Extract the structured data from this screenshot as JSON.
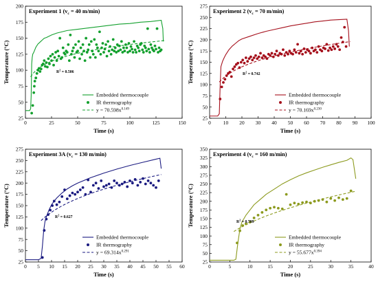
{
  "chart_data": [
    {
      "type": "scatter",
      "title_prefix": "Experiment 1 (v",
      "title_sub": "c",
      "title_suffix": " = 40 m/min)",
      "xlabel": "Time (s)",
      "ylabel": "Temperature (°C)",
      "xlim": [
        0,
        150
      ],
      "ylim": [
        25,
        200
      ],
      "xticks": [
        0,
        25,
        50,
        75,
        100,
        125,
        150
      ],
      "yticks": [
        25,
        50,
        75,
        100,
        125,
        150,
        175,
        200
      ],
      "color": "#13a02e",
      "r2_label": "R",
      "r2_sup": "2",
      "r2_value": " = 0.506",
      "grid": false,
      "legend_position": "bottom-right",
      "series": [
        {
          "name": "Embedded thermocouple",
          "kind": "line",
          "x": [
            0,
            4,
            5,
            5.5,
            6,
            6.5,
            7,
            8,
            9,
            10,
            12,
            14,
            16,
            18,
            20,
            25,
            30,
            40,
            50,
            60,
            70,
            80,
            90,
            100,
            110,
            120,
            130,
            131.5,
            132
          ],
          "y": [
            37,
            37,
            40,
            60,
            110,
            120,
            125,
            128,
            132,
            136,
            141,
            144,
            147,
            150,
            151,
            155,
            158,
            162,
            164,
            166,
            168,
            170,
            172,
            173,
            175,
            176,
            178,
            165,
            145
          ]
        },
        {
          "name": "IR thermography",
          "kind": "scatter",
          "x": [
            6,
            7,
            8,
            8.5,
            9,
            10,
            11,
            12,
            13,
            14,
            15,
            16,
            17,
            18,
            19,
            20,
            21,
            22,
            23,
            24,
            25,
            26,
            27,
            28,
            29,
            30,
            31,
            32,
            33,
            34,
            35,
            36,
            37,
            38,
            39,
            40,
            41,
            42,
            43,
            44,
            45,
            46,
            47,
            48,
            49,
            50,
            51,
            52,
            53,
            54,
            55,
            56,
            57,
            58,
            59,
            60,
            61,
            62,
            63,
            64,
            65,
            66,
            67,
            68,
            69,
            70,
            71,
            72,
            73,
            74,
            75,
            76,
            77,
            78,
            79,
            80,
            81,
            82,
            83,
            84,
            85,
            86,
            87,
            88,
            89,
            90,
            91,
            92,
            93,
            94,
            95,
            96,
            97,
            98,
            99,
            100,
            101,
            102,
            103,
            104,
            105,
            106,
            107,
            108,
            109,
            110,
            111,
            112,
            113,
            114,
            115,
            116,
            117,
            118,
            119,
            120,
            121,
            122,
            123,
            124,
            125,
            126,
            127,
            128,
            129,
            130
          ],
          "y": [
            33,
            45,
            65,
            75,
            83,
            88,
            95,
            100,
            103,
            98,
            102,
            108,
            110,
            115,
            106,
            112,
            105,
            118,
            110,
            122,
            115,
            125,
            108,
            120,
            128,
            115,
            130,
            122,
            150,
            118,
            120,
            135,
            127,
            125,
            130,
            128,
            140,
            115,
            155,
            125,
            130,
            135,
            120,
            140,
            128,
            130,
            145,
            118,
            135,
            125,
            140,
            130,
            115,
            150,
            128,
            132,
            140,
            120,
            145,
            130,
            125,
            148,
            120,
            140,
            135,
            130,
            160,
            125,
            135,
            142,
            128,
            133,
            140,
            122,
            145,
            130,
            137,
            125,
            132,
            148,
            130,
            135,
            128,
            140,
            130,
            138,
            132,
            145,
            128,
            135,
            130,
            140,
            135,
            128,
            142,
            130,
            137,
            133,
            128,
            145,
            132,
            128,
            138,
            135,
            130,
            140,
            142,
            132,
            128,
            138,
            135,
            130,
            165,
            133,
            128,
            140,
            135,
            132,
            130,
            138,
            133,
            165,
            128,
            135,
            130,
            132
          ]
        },
        {
          "name": "y = 70.598x",
          "sup": "0.149",
          "kind": "fit",
          "a": 70.598,
          "b": 0.149,
          "x_from": 5,
          "x_to": 133
        }
      ]
    },
    {
      "type": "scatter",
      "title_prefix": "Experiment 2 (v",
      "title_sub": "c",
      "title_suffix": " = 70 m/min)",
      "xlabel": "Time (s)",
      "ylabel": "Temperature (°C)",
      "xlim": [
        0,
        100
      ],
      "ylim": [
        25,
        275
      ],
      "xticks": [
        0,
        10,
        20,
        30,
        40,
        50,
        60,
        70,
        80,
        90,
        100
      ],
      "yticks": [
        25,
        50,
        75,
        100,
        125,
        150,
        175,
        200,
        225,
        250,
        275
      ],
      "color": "#a50f1b",
      "r2_label": "R",
      "r2_sup": "2",
      "r2_value": " = 0.742",
      "grid": false,
      "legend_position": "bottom-right",
      "series": [
        {
          "name": "Embedded thermocouple",
          "kind": "line",
          "x": [
            0,
            5,
            6,
            6.5,
            7,
            8,
            9,
            10,
            12,
            14,
            16,
            18,
            20,
            25,
            30,
            35,
            40,
            45,
            50,
            55,
            60,
            65,
            70,
            75,
            80,
            85,
            86,
            86.5
          ],
          "y": [
            30,
            30,
            35,
            95,
            140,
            152,
            160,
            167,
            178,
            186,
            192,
            198,
            202,
            208,
            214,
            219,
            223,
            227,
            231,
            234,
            237,
            240,
            242,
            244,
            245,
            246,
            220,
            185
          ]
        },
        {
          "name": "IR thermography",
          "kind": "scatter",
          "x": [
            6.5,
            7.5,
            8.5,
            9.5,
            10.5,
            11.5,
            12.5,
            13.5,
            14.5,
            15.5,
            16.5,
            17.5,
            18.5,
            19.5,
            20.5,
            21.5,
            22.5,
            23.5,
            24.5,
            25.5,
            26.5,
            27.5,
            28.5,
            29.5,
            30.5,
            31.5,
            32.5,
            33.5,
            34.5,
            35.5,
            36.5,
            37.5,
            38.5,
            39.5,
            40.5,
            41.5,
            42.5,
            43.5,
            44.5,
            45.5,
            46.5,
            47.5,
            48.5,
            49.5,
            50.5,
            51.5,
            52.5,
            53.5,
            54.5,
            55.5,
            56.5,
            57.5,
            58.5,
            59.5,
            60.5,
            61.5,
            62.5,
            63.5,
            64.5,
            65.5,
            66.5,
            67.5,
            68.5,
            69.5,
            70.5,
            71.5,
            72.5,
            73.5,
            74.5,
            75.5,
            76.5,
            77.5,
            78.5,
            79.5,
            80.5,
            81.5,
            82.5,
            83.5,
            84.5
          ],
          "y": [
            68,
            95,
            105,
            112,
            120,
            125,
            128,
            118,
            135,
            140,
            145,
            148,
            138,
            150,
            155,
            148,
            160,
            152,
            158,
            162,
            155,
            160,
            165,
            158,
            162,
            170,
            160,
            165,
            162,
            158,
            168,
            165,
            170,
            162,
            168,
            175,
            165,
            170,
            168,
            178,
            165,
            172,
            168,
            175,
            170,
            168,
            178,
            172,
            190,
            170,
            175,
            168,
            180,
            172,
            178,
            175,
            170,
            182,
            175,
            178,
            172,
            185,
            178,
            175,
            182,
            180,
            190,
            176,
            182,
            178,
            185,
            180,
            190,
            185,
            178,
            205,
            195,
            228,
            185
          ]
        },
        {
          "name": "y = 70.169x",
          "sup": "0.230",
          "kind": "fit",
          "a": 70.169,
          "b": 0.23,
          "x_from": 6,
          "x_to": 87
        }
      ]
    },
    {
      "type": "scatter",
      "title_prefix": "Experiment 3A (v",
      "title_sub": "c",
      "title_suffix": " = 130 m/min)",
      "xlabel": "Time (s)",
      "ylabel": "Temperature (°C)",
      "xlim": [
        0,
        60
      ],
      "ylim": [
        25,
        275
      ],
      "xticks": [
        0,
        5,
        10,
        15,
        20,
        25,
        30,
        35,
        40,
        45,
        50,
        55,
        60
      ],
      "yticks": [
        25,
        50,
        75,
        100,
        125,
        150,
        175,
        200,
        225,
        250,
        275
      ],
      "color": "#1a1a80",
      "r2_label": "R",
      "r2_sup": "2",
      "r2_value": " = 0.627",
      "grid": false,
      "legend_position": "bottom-right",
      "series": [
        {
          "name": "Embedded thermocouple",
          "kind": "line",
          "x": [
            0,
            5,
            6,
            6.5,
            7,
            7.5,
            8,
            9,
            10,
            11,
            12,
            14,
            16,
            18,
            20,
            25,
            30,
            35,
            40,
            45,
            50,
            51.5,
            52
          ],
          "y": [
            30,
            30,
            33,
            60,
            95,
            115,
            125,
            140,
            152,
            160,
            167,
            178,
            187,
            194,
            200,
            212,
            222,
            231,
            239,
            246,
            253,
            255,
            232
          ]
        },
        {
          "name": "IR thermography",
          "kind": "scatter",
          "x": [
            6.5,
            7.2,
            8,
            8.7,
            9.5,
            10.3,
            11,
            12,
            13,
            14,
            15,
            16,
            17,
            18,
            19,
            20,
            21,
            22,
            23,
            24,
            25,
            26,
            27,
            28,
            29,
            30,
            31,
            32,
            33,
            34,
            35,
            36,
            37,
            38,
            39,
            40,
            41,
            42,
            43,
            44,
            45,
            46,
            47,
            48,
            49,
            50,
            51
          ],
          "y": [
            35,
            95,
            120,
            130,
            140,
            150,
            160,
            152,
            158,
            170,
            185,
            165,
            172,
            178,
            175,
            180,
            185,
            190,
            175,
            207,
            180,
            195,
            200,
            188,
            205,
            192,
            195,
            198,
            190,
            205,
            200,
            195,
            198,
            202,
            192,
            205,
            200,
            208,
            195,
            202,
            210,
            198,
            205,
            200,
            195,
            190,
            205
          ]
        },
        {
          "name": "y = 69.314x",
          "sup": "0.291",
          "kind": "fit",
          "a": 69.314,
          "b": 0.291,
          "x_from": 6,
          "x_to": 52
        }
      ]
    },
    {
      "type": "scatter",
      "title_prefix": "Experiment 4 (v",
      "title_sub": "c",
      "title_suffix": " = 160 m/min)",
      "xlabel": "Time (s)",
      "ylabel": "Temperature (°C)",
      "xlim": [
        0,
        40
      ],
      "ylim": [
        25,
        350
      ],
      "xticks": [
        0,
        5,
        10,
        15,
        20,
        25,
        30,
        35,
        40
      ],
      "yticks": [
        25,
        50,
        75,
        100,
        125,
        150,
        175,
        200,
        225,
        250,
        275,
        300,
        325,
        350
      ],
      "color": "#8c9a1e",
      "r2_label": "R",
      "r2_sup": "2",
      "r2_value": " = 0.709",
      "grid": false,
      "legend_position": "bottom-right",
      "series": [
        {
          "name": "Embedded thermocouple",
          "kind": "line",
          "x": [
            0,
            6,
            6.5,
            7,
            7.5,
            8,
            9,
            10,
            11,
            12,
            14,
            16,
            18,
            20,
            22,
            24,
            26,
            28,
            30,
            32,
            34,
            35,
            35.5,
            36.2
          ],
          "y": [
            30,
            30,
            33,
            80,
            120,
            140,
            160,
            175,
            190,
            200,
            220,
            235,
            250,
            262,
            273,
            282,
            290,
            298,
            305,
            312,
            318,
            325,
            320,
            265
          ]
        },
        {
          "name": "IR thermography",
          "kind": "scatter",
          "x": [
            6.8,
            7.5,
            8.2,
            9,
            10,
            11,
            12,
            13,
            14,
            15,
            16,
            17,
            18,
            19,
            20,
            21,
            22,
            23,
            24,
            25,
            26,
            27,
            28,
            29,
            30,
            31,
            32,
            33,
            34,
            35
          ],
          "y": [
            80,
            115,
            130,
            135,
            140,
            152,
            160,
            168,
            175,
            180,
            183,
            180,
            178,
            220,
            190,
            195,
            192,
            196,
            198,
            195,
            200,
            202,
            205,
            198,
            208,
            202,
            210,
            205,
            208,
            230
          ]
        },
        {
          "name": "y = 55.677x",
          "sup": "0.394",
          "kind": "fit",
          "a": 55.677,
          "b": 0.394,
          "x_from": 6,
          "x_to": 36
        }
      ]
    }
  ]
}
